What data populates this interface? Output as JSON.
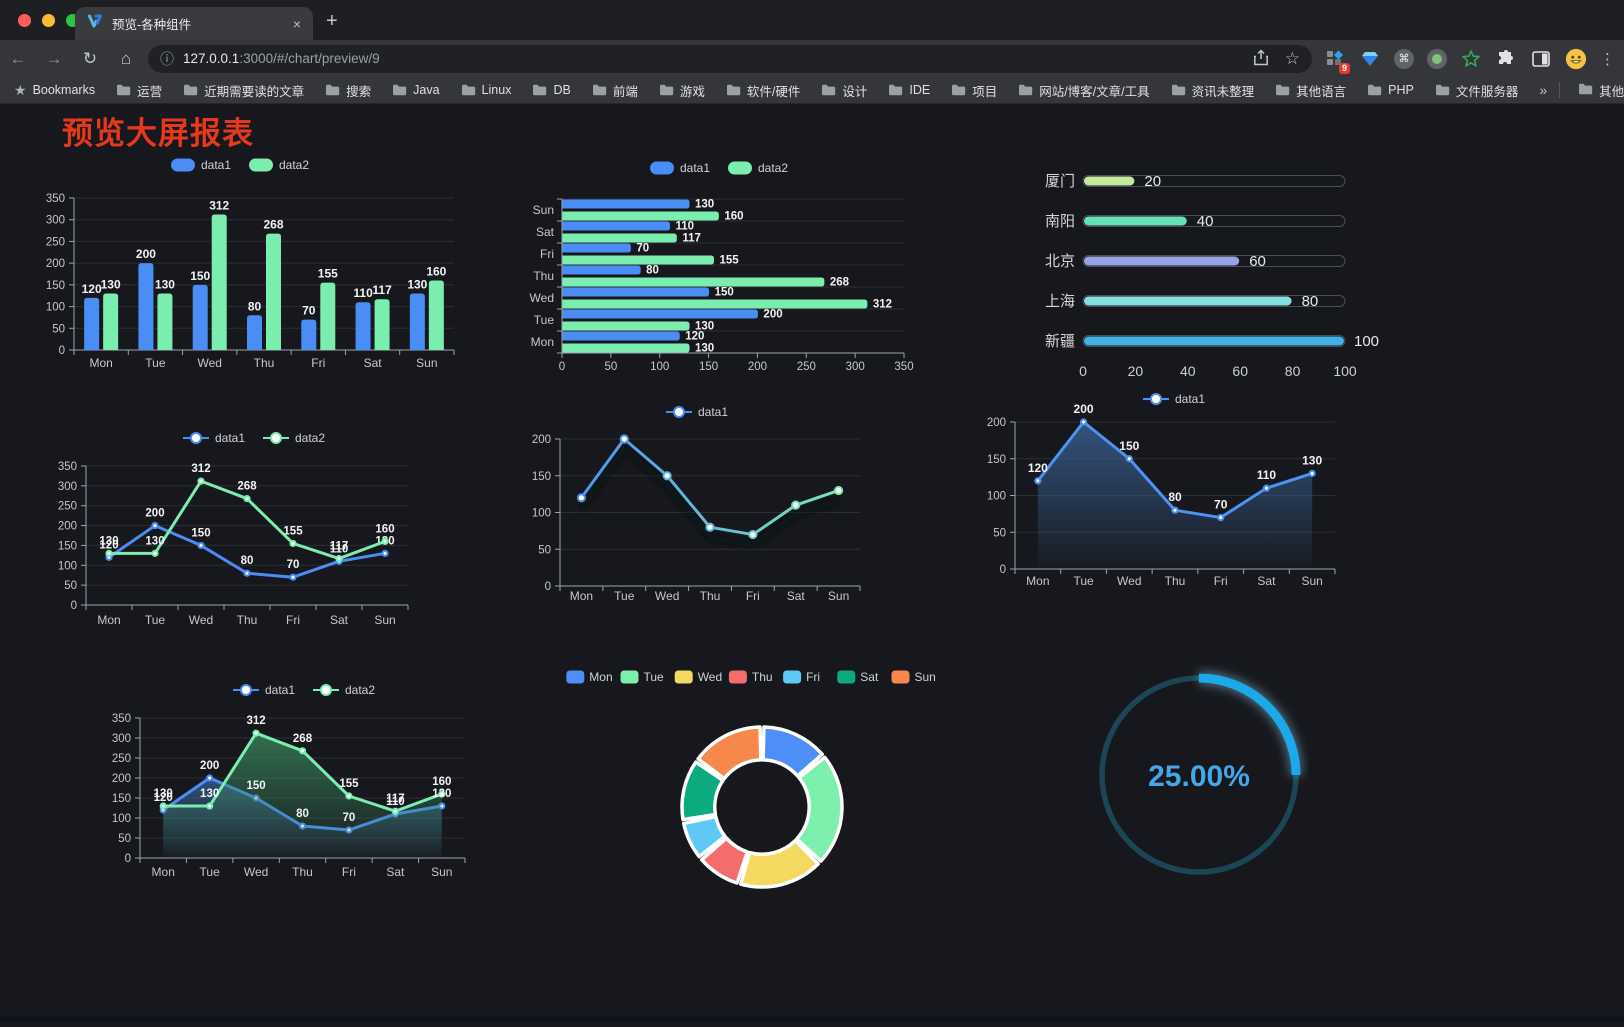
{
  "browser": {
    "tab": {
      "title": "预览-各种组件",
      "close": "×"
    },
    "new_tab": "+",
    "nav": {
      "back": "←",
      "forward": "→",
      "reload": "↻",
      "home": "⌂"
    },
    "omnibox": {
      "info": "ⓘ",
      "url_host": "127.0.0.1",
      "url_rest": ":3000/#/chart/preview/9",
      "bookmark": "☆"
    },
    "extensions_badge": "9",
    "cmd_glyph": "⌘",
    "menu": "⋮",
    "bookmarks_bar": {
      "star_label": "Bookmarks",
      "folders": [
        "运营",
        "近期需要读的文章",
        "搜索",
        "Java",
        "Linux",
        "DB",
        "前端",
        "游戏",
        "软件/硬件",
        "设计",
        "IDE",
        "项目",
        "网站/博客/文章/工具",
        "资讯未整理",
        "其他语言",
        "PHP",
        "文件服务器"
      ],
      "overflow": "»",
      "other": "其他书签"
    }
  },
  "page": {
    "title": "预览大屏报表"
  },
  "chart_data": [
    {
      "id": "bar-vertical",
      "type": "bar",
      "legend_position": "top",
      "grid": true,
      "categories": [
        "Mon",
        "Tue",
        "Wed",
        "Thu",
        "Fri",
        "Sat",
        "Sun"
      ],
      "series": [
        {
          "name": "data1",
          "color": "#4a8df5",
          "values": [
            120,
            200,
            150,
            80,
            70,
            110,
            130
          ]
        },
        {
          "name": "data2",
          "color": "#7bedae",
          "values": [
            130,
            130,
            312,
            268,
            155,
            117,
            160
          ]
        }
      ],
      "ylim": [
        0,
        350
      ],
      "yticks": [
        0,
        50,
        100,
        150,
        200,
        250,
        300,
        350
      ],
      "show_labels": true
    },
    {
      "id": "bar-horizontal",
      "type": "bar",
      "orientation": "horizontal",
      "legend_position": "top",
      "grid": true,
      "categories": [
        "Mon",
        "Tue",
        "Wed",
        "Thu",
        "Fri",
        "Sat",
        "Sun"
      ],
      "display_order_top_to_bottom": [
        "Sun",
        "Sat",
        "Fri",
        "Thu",
        "Wed",
        "Tue",
        "Mon"
      ],
      "series": [
        {
          "name": "data1",
          "color": "#4a8df5",
          "values": [
            120,
            200,
            150,
            80,
            70,
            110,
            130
          ]
        },
        {
          "name": "data2",
          "color": "#7bedae",
          "values": [
            130,
            130,
            312,
            268,
            155,
            117,
            160
          ]
        }
      ],
      "xlim": [
        0,
        350
      ],
      "xticks": [
        0,
        50,
        100,
        150,
        200,
        250,
        300,
        350
      ],
      "show_labels": true
    },
    {
      "id": "progress-bars",
      "type": "bar",
      "orientation": "horizontal",
      "categories": [
        "厦门",
        "南阳",
        "北京",
        "上海",
        "新疆"
      ],
      "values": [
        20,
        40,
        60,
        80,
        100
      ],
      "colors": [
        "#c3e89e",
        "#66e0b4",
        "#9aa2e6",
        "#84dfdf",
        "#3fb1e3"
      ],
      "xlim": [
        0,
        100
      ],
      "xticks": [
        0,
        20,
        40,
        60,
        80,
        100
      ],
      "show_labels": true
    },
    {
      "id": "line-basic",
      "type": "line",
      "legend_position": "top",
      "grid": true,
      "categories": [
        "Mon",
        "Tue",
        "Wed",
        "Thu",
        "Fri",
        "Sat",
        "Sun"
      ],
      "series": [
        {
          "name": "data1",
          "color": "#4a8df5",
          "values": [
            120,
            200,
            150,
            80,
            70,
            110,
            130
          ]
        },
        {
          "name": "data2",
          "color": "#7bedae",
          "values": [
            130,
            130,
            312,
            268,
            155,
            117,
            160
          ]
        }
      ],
      "ylim": [
        0,
        350
      ],
      "yticks": [
        0,
        50,
        100,
        150,
        200,
        250,
        300,
        350
      ],
      "show_labels": true
    },
    {
      "id": "line-gradient",
      "type": "line",
      "legend_position": "top",
      "grid": true,
      "shadow": true,
      "categories": [
        "Mon",
        "Tue",
        "Wed",
        "Thu",
        "Fri",
        "Sat",
        "Sun"
      ],
      "series": [
        {
          "name": "data1",
          "gradient": [
            "#4a8df5",
            "#7bedae"
          ],
          "values": [
            120,
            200,
            150,
            80,
            70,
            110,
            130
          ]
        }
      ],
      "ylim": [
        0,
        200
      ],
      "yticks": [
        0,
        50,
        100,
        150,
        200
      ],
      "show_labels": false
    },
    {
      "id": "area-single",
      "type": "area",
      "legend_position": "top",
      "grid": true,
      "categories": [
        "Mon",
        "Tue",
        "Wed",
        "Thu",
        "Fri",
        "Sat",
        "Sun"
      ],
      "series": [
        {
          "name": "data1",
          "color": "#4d94f2",
          "area_color": "#3a6296",
          "values": [
            120,
            200,
            150,
            80,
            70,
            110,
            130
          ]
        }
      ],
      "ylim": [
        0,
        200
      ],
      "yticks": [
        0,
        50,
        100,
        150,
        200
      ],
      "show_labels": true
    },
    {
      "id": "area-double",
      "type": "area",
      "legend_position": "top",
      "grid": true,
      "categories": [
        "Mon",
        "Tue",
        "Wed",
        "Thu",
        "Fri",
        "Sat",
        "Sun"
      ],
      "series": [
        {
          "name": "data1",
          "color": "#4a8df5",
          "area_color": "#3a6296",
          "values": [
            120,
            200,
            150,
            80,
            70,
            110,
            130
          ]
        },
        {
          "name": "data2",
          "color": "#7bedae",
          "area_color": "#3a8c60",
          "values": [
            130,
            130,
            312,
            268,
            155,
            117,
            160
          ]
        }
      ],
      "ylim": [
        0,
        350
      ],
      "yticks": [
        0,
        50,
        100,
        150,
        200,
        250,
        300,
        350
      ],
      "show_labels": true
    },
    {
      "id": "pie-donut",
      "type": "pie",
      "legend_position": "top",
      "inner_radius_ratio": 0.59,
      "categories": [
        "Mon",
        "Tue",
        "Wed",
        "Thu",
        "Fri",
        "Sat",
        "Sun"
      ],
      "values": [
        120,
        200,
        150,
        80,
        70,
        110,
        130
      ],
      "colors": [
        "#4e8ef7",
        "#7cefad",
        "#f5d860",
        "#f56c6c",
        "#5fc9f5",
        "#0bab7f",
        "#f5884a"
      ],
      "border_color": "#ffffff"
    },
    {
      "id": "gauge",
      "type": "gauge",
      "value": 25,
      "label": "25.00%",
      "color": "#1ca9ea",
      "track_color": "#1c4555",
      "text_color": "#45a7e8"
    }
  ]
}
